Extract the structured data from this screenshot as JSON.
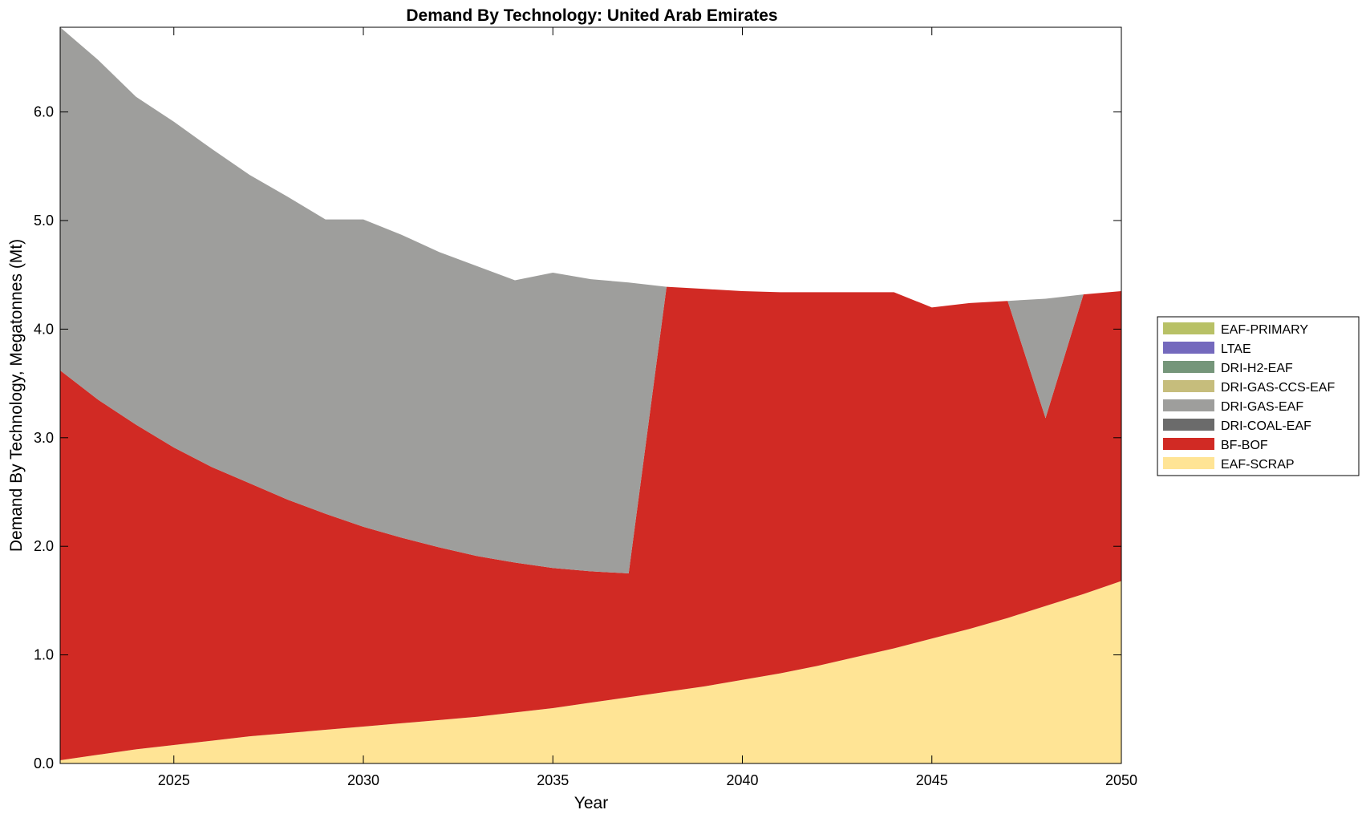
{
  "chart_data": {
    "type": "area",
    "title": "Demand By Technology: United Arab Emirates",
    "xlabel": "Year",
    "ylabel": "Demand By Technology, Megatonnes (Mt)",
    "xlim": [
      2022,
      2050
    ],
    "ylim": [
      0,
      6.78
    ],
    "xticks": [
      2025,
      2030,
      2035,
      2040,
      2045,
      2050
    ],
    "xtick_labels": [
      "2025",
      "2030",
      "2035",
      "2040",
      "2045",
      "2050"
    ],
    "yticks": [
      0,
      1,
      2,
      3,
      4,
      5,
      6
    ],
    "ytick_labels": [
      "0.0",
      "1.0",
      "2.0",
      "3.0",
      "4.0",
      "5.0",
      "6.0"
    ],
    "grid": false,
    "stacked": true,
    "legend_position": "right",
    "x": [
      2022,
      2023,
      2024,
      2025,
      2026,
      2027,
      2028,
      2029,
      2030,
      2031,
      2032,
      2033,
      2034,
      2035,
      2036,
      2037,
      2038,
      2039,
      2040,
      2041,
      2042,
      2043,
      2044,
      2045,
      2046,
      2047,
      2048,
      2049,
      2050
    ],
    "series": [
      {
        "name": "EAF-SCRAP",
        "color": "#FFE495",
        "values": [
          0.03,
          0.08,
          0.13,
          0.17,
          0.21,
          0.25,
          0.28,
          0.31,
          0.34,
          0.37,
          0.4,
          0.43,
          0.47,
          0.51,
          0.56,
          0.61,
          0.66,
          0.71,
          0.77,
          0.83,
          0.9,
          0.98,
          1.06,
          1.15,
          1.24,
          1.34,
          1.45,
          1.56,
          1.68
        ]
      },
      {
        "name": "BF-BOF",
        "color": "#D12A24",
        "values": [
          3.59,
          3.27,
          2.99,
          2.74,
          2.52,
          2.33,
          2.15,
          1.99,
          1.84,
          1.71,
          1.59,
          1.48,
          1.38,
          1.29,
          1.21,
          1.14,
          3.73,
          3.66,
          3.58,
          3.51,
          3.44,
          3.36,
          3.28,
          3.05,
          3.0,
          2.92,
          1.73,
          2.76,
          2.67
        ]
      },
      {
        "name": "DRI-COAL-EAF",
        "color": "#6B6B6B",
        "values": [
          0,
          0,
          0,
          0,
          0,
          0,
          0,
          0,
          0,
          0,
          0,
          0,
          0,
          0,
          0,
          0,
          0,
          0,
          0,
          0,
          0,
          0,
          0,
          0,
          0,
          0,
          0,
          0,
          0
        ]
      },
      {
        "name": "DRI-GAS-EAF",
        "color": "#9E9E9C",
        "values": [
          3.16,
          3.13,
          3.02,
          3.0,
          2.93,
          2.84,
          2.79,
          2.71,
          2.83,
          2.79,
          2.72,
          2.67,
          2.6,
          2.72,
          2.69,
          2.68,
          0,
          0,
          0,
          0,
          0,
          0,
          0,
          0,
          0,
          0,
          1.1,
          0,
          0
        ]
      },
      {
        "name": "DRI-GAS-CCS-EAF",
        "color": "#C6BD7C",
        "values": [
          0,
          0,
          0,
          0,
          0,
          0,
          0,
          0,
          0,
          0,
          0,
          0,
          0,
          0,
          0,
          0,
          0,
          0,
          0,
          0,
          0,
          0,
          0,
          0,
          0,
          0,
          0,
          0,
          0
        ]
      },
      {
        "name": "DRI-H2-EAF",
        "color": "#75967A",
        "values": [
          0,
          0,
          0,
          0,
          0,
          0,
          0,
          0,
          0,
          0,
          0,
          0,
          0,
          0,
          0,
          0,
          0,
          0,
          0,
          0,
          0,
          0,
          0,
          0,
          0,
          0,
          0,
          0,
          0
        ]
      },
      {
        "name": "LTAE",
        "color": "#7469BD",
        "values": [
          0,
          0,
          0,
          0,
          0,
          0,
          0,
          0,
          0,
          0,
          0,
          0,
          0,
          0,
          0,
          0,
          0,
          0,
          0,
          0,
          0,
          0,
          0,
          0,
          0,
          0,
          0,
          0,
          0
        ]
      },
      {
        "name": "EAF-PRIMARY",
        "color": "#B8C166",
        "values": [
          0,
          0,
          0,
          0,
          0,
          0,
          0,
          0,
          0,
          0,
          0,
          0,
          0,
          0,
          0,
          0,
          0,
          0,
          0,
          0,
          0,
          0,
          0,
          0,
          0,
          0,
          0,
          0,
          0
        ]
      }
    ]
  }
}
